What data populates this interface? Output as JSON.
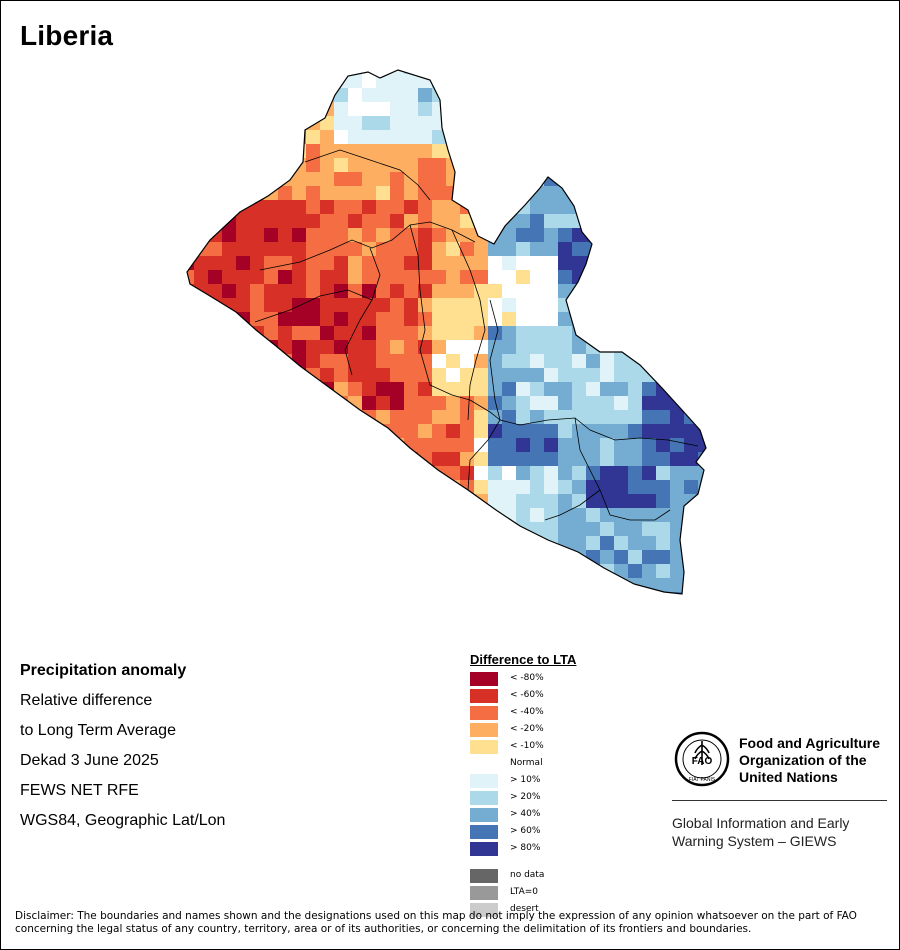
{
  "map": {
    "title": "Liberia"
  },
  "info": {
    "heading": "Precipitation anomaly",
    "line1": "Relative difference",
    "line2": "to Long Term Average",
    "period": "Dekad 3 June 2025",
    "source": "FEWS NET RFE",
    "projection": "WGS84, Geographic Lat/Lon"
  },
  "legend": {
    "title": "Difference to LTA",
    "items": [
      {
        "label": "< -80%",
        "color": "#a50026"
      },
      {
        "label": "< -60%",
        "color": "#d73027"
      },
      {
        "label": "< -40%",
        "color": "#f46d43"
      },
      {
        "label": "< -20%",
        "color": "#fdae61"
      },
      {
        "label": "< -10%",
        "color": "#fee090"
      },
      {
        "label": "Normal",
        "color": "#ffffff"
      },
      {
        "label": "> 10%",
        "color": "#e0f3f8"
      },
      {
        "label": "> 20%",
        "color": "#abd9e9"
      },
      {
        "label": "> 40%",
        "color": "#74add1"
      },
      {
        "label": "> 60%",
        "color": "#4575b4"
      },
      {
        "label": "> 80%",
        "color": "#313695"
      }
    ],
    "extra": [
      {
        "label": "no data",
        "color": "#666666"
      },
      {
        "label": "LTA=0",
        "color": "#999999"
      },
      {
        "label": "desert",
        "color": "#cccccc"
      }
    ]
  },
  "branding": {
    "fao_line1": "Food and Agriculture",
    "fao_line2": "Organization of the",
    "fao_line3": "United Nations",
    "giews_line1": "Global Information and Early",
    "giews_line2": "Warning System – GIEWS",
    "logo_letters": "FAO",
    "logo_motto": "FIAT PANIS"
  },
  "disclaimer": {
    "line1": "Disclaimer: The boundaries and names shown and the designations used on this map do not imply the expression of any opinion whatsoever on the part of FAO",
    "line2": "concerning the legal status of any country, territory, area or of its authorities, or concerning the delimitation of its frontiers and boundaries."
  }
}
